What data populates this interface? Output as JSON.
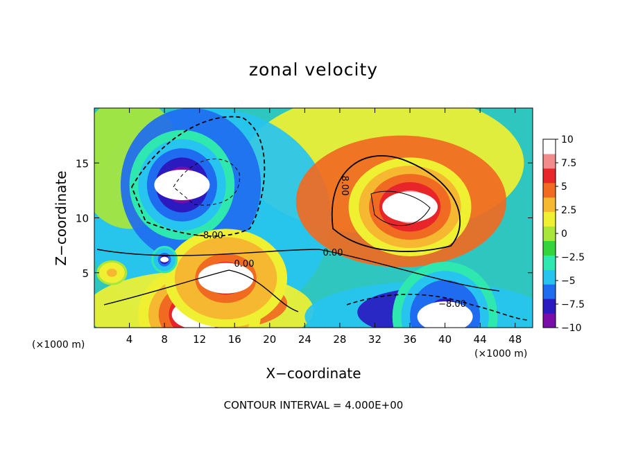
{
  "chart_data": {
    "type": "heatmap",
    "title": "zonal velocity",
    "xlabel": "X−coordinate",
    "ylabel": "Z−coordinate",
    "x_unit_left": "(×1000 m)",
    "x_unit_right": "(×1000 m)",
    "footer": "CONTOUR INTERVAL = 4.000E+00",
    "xlim": [
      0,
      50
    ],
    "ylim": [
      0,
      20
    ],
    "x_ticks": [
      "4",
      "8",
      "12",
      "16",
      "20",
      "24",
      "28",
      "32",
      "36",
      "40",
      "44",
      "48"
    ],
    "y_ticks": [
      "5",
      "10",
      "15"
    ],
    "colorbar": {
      "range": [
        -10,
        10
      ],
      "ticks": [
        "10",
        "7.5",
        "5",
        "2.5",
        "0",
        "−2.5",
        "−5",
        "−7.5",
        "−10"
      ],
      "colors": [
        "#7a0da8",
        "#2a1ac0",
        "#1f6cf0",
        "#27c4f0",
        "#2fe8b0",
        "#36d43c",
        "#a8e63a",
        "#f0f032",
        "#f5b830",
        "#f06a22",
        "#e8262a",
        "#f28c8c",
        "#ffffff"
      ]
    },
    "contour_labels": [
      "−8.00",
      "0.00",
      "0.00",
      "8.00",
      "−8.00"
    ],
    "features": [
      {
        "x": 10,
        "z": 13,
        "value": -13,
        "label": "negative core (upper left)"
      },
      {
        "x": 36,
        "z": 11,
        "value": 13,
        "label": "positive core (upper right)"
      },
      {
        "x": 12,
        "z": 1.2,
        "value": 13,
        "label": "positive core (bottom left)"
      },
      {
        "x": 15,
        "z": 4.5,
        "value": 11,
        "label": "positive core (bottom)"
      },
      {
        "x": 40,
        "z": 1.0,
        "value": -12,
        "label": "negative core (bottom right)"
      },
      {
        "x": 8,
        "z": 6.2,
        "value": -11,
        "label": "negative spot"
      },
      {
        "x": 2,
        "z": 5.0,
        "value": 6,
        "label": "small positive spot"
      }
    ]
  }
}
